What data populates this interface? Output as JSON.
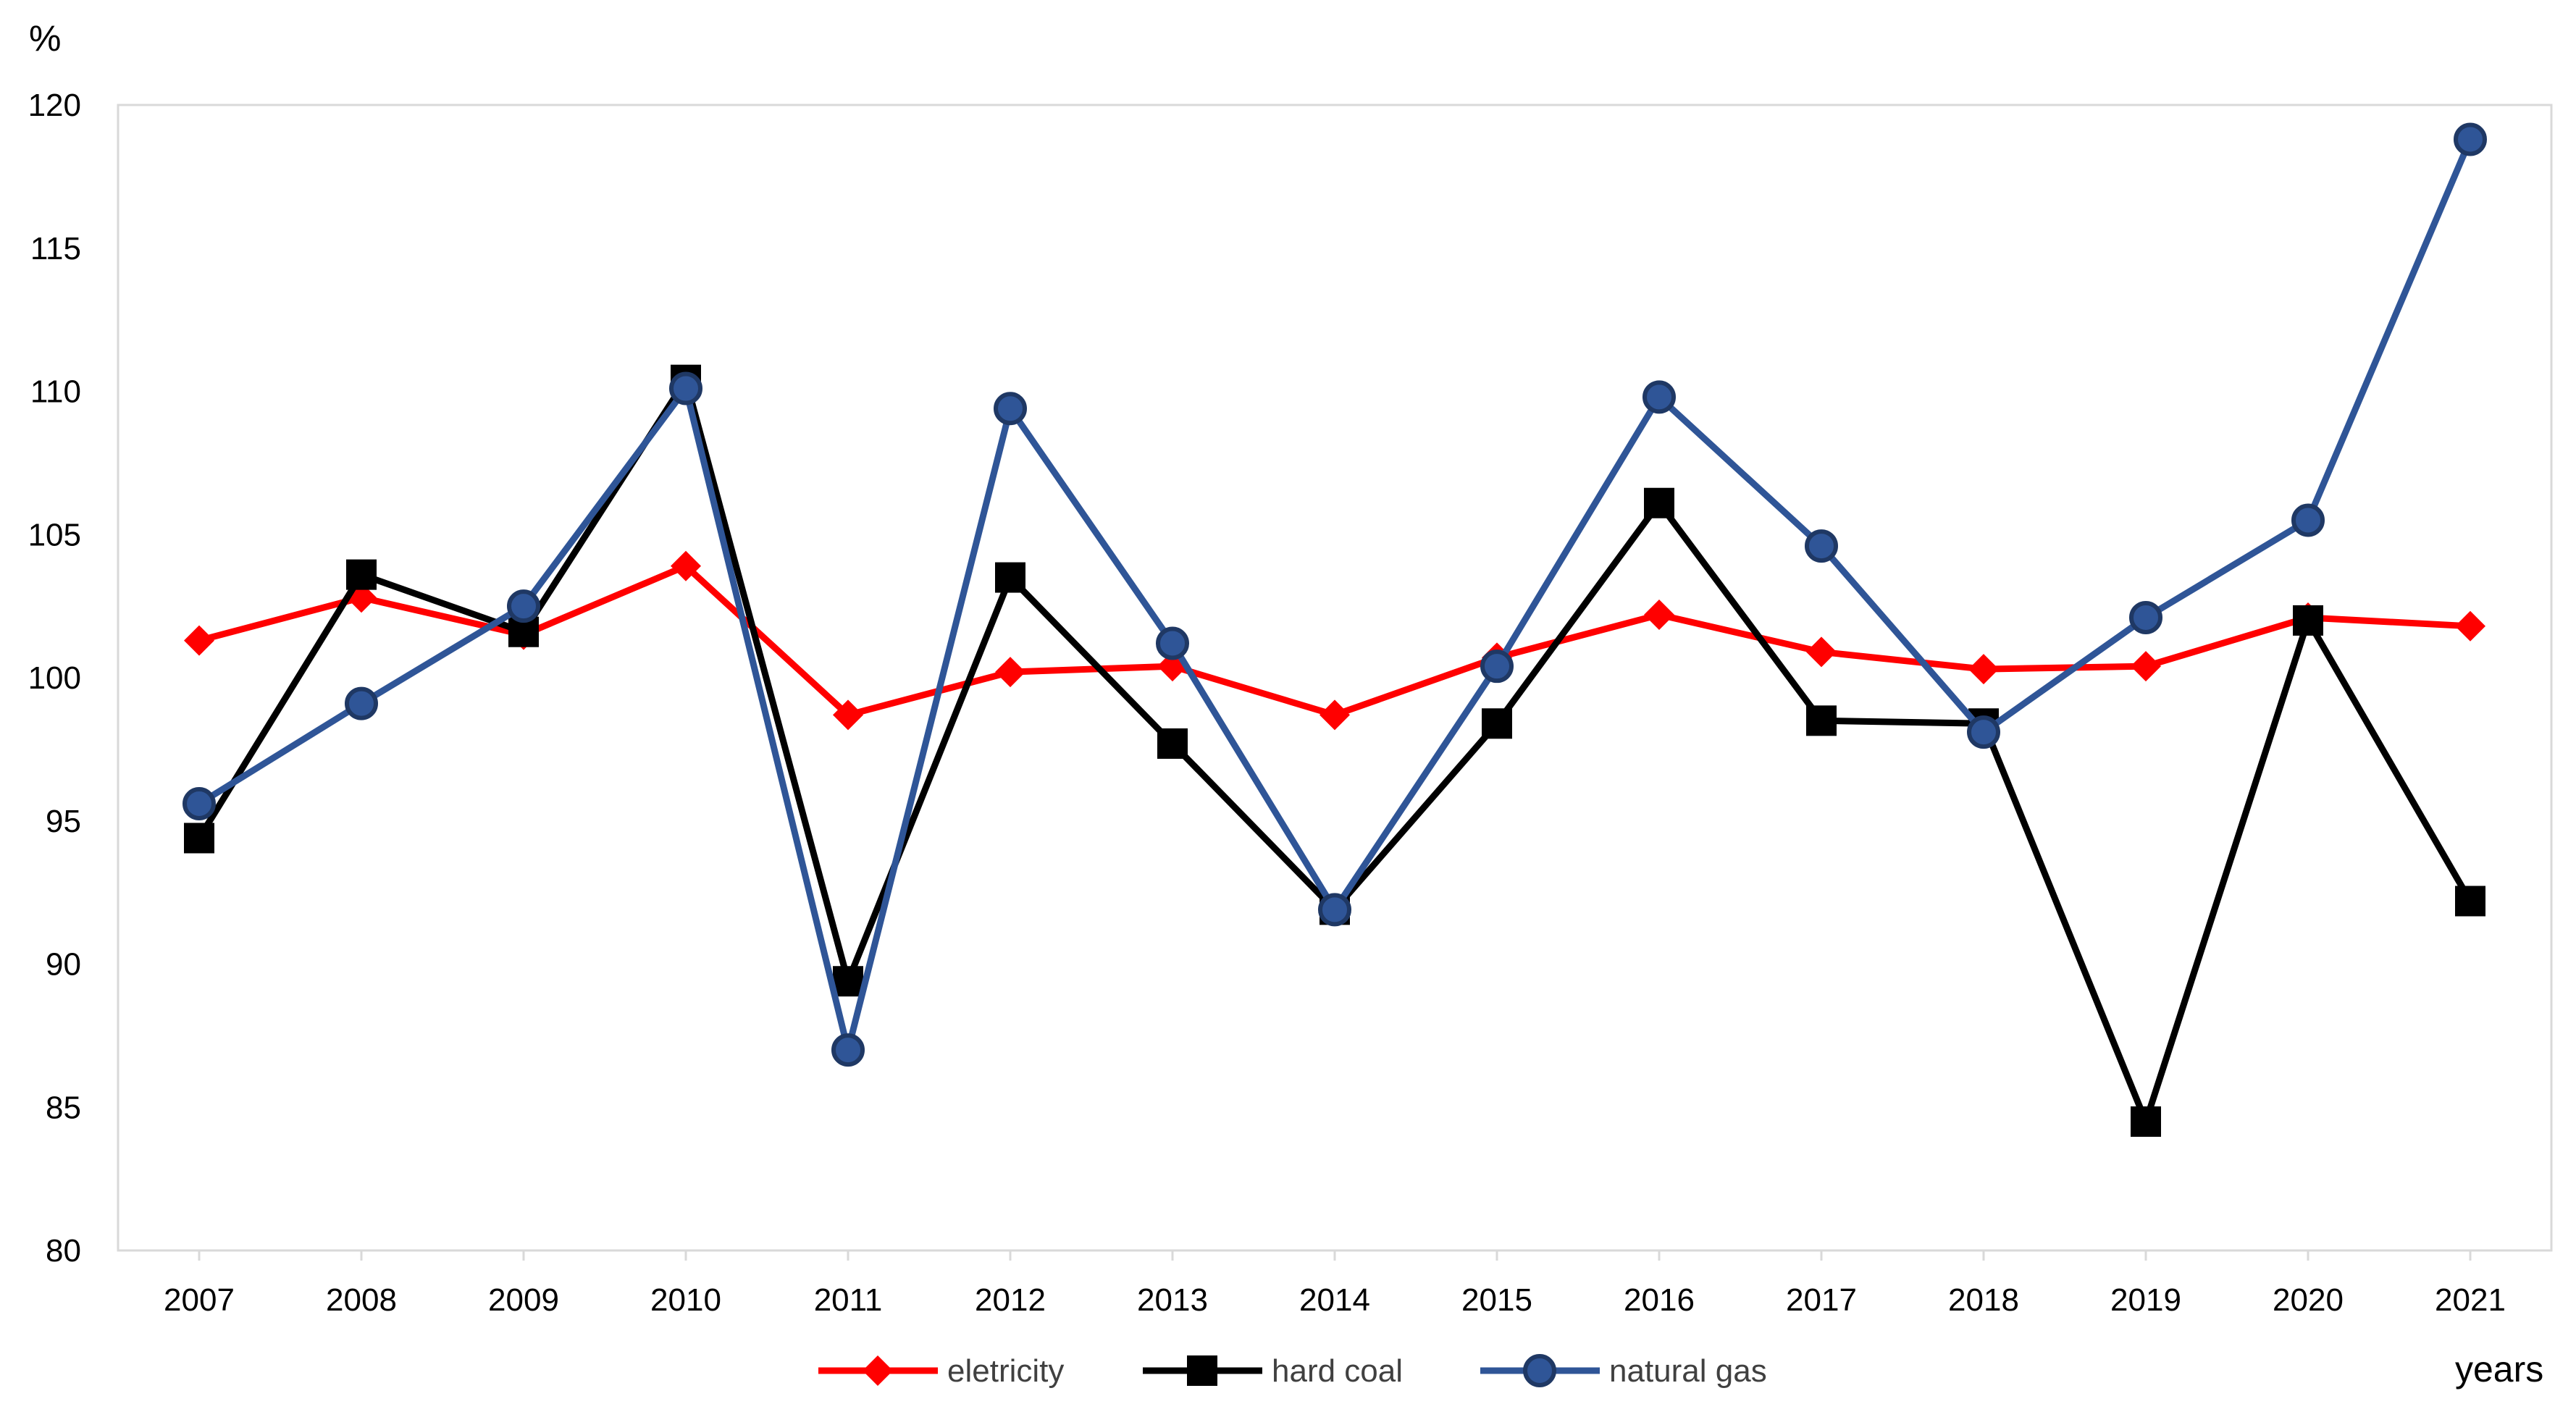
{
  "chart_data": {
    "type": "line",
    "title": "",
    "xlabel": "years",
    "ylabel": "%",
    "categories": [
      "2007",
      "2008",
      "2009",
      "2010",
      "2011",
      "2012",
      "2013",
      "2014",
      "2015",
      "2016",
      "2017",
      "2018",
      "2019",
      "2020",
      "2021"
    ],
    "ylim": [
      80,
      120
    ],
    "yticks": [
      80,
      85,
      90,
      95,
      100,
      105,
      110,
      115,
      120
    ],
    "grid": false,
    "legend_position": "bottom",
    "series": [
      {
        "name": "eletricity",
        "color": "#FF0000",
        "marker": "diamond",
        "values": [
          101.3,
          102.8,
          101.5,
          103.9,
          98.7,
          100.2,
          100.4,
          98.7,
          100.7,
          102.2,
          100.9,
          100.3,
          100.4,
          102.1,
          101.8
        ]
      },
      {
        "name": "hard coal",
        "color": "#000000",
        "marker": "square",
        "values": [
          94.4,
          103.6,
          101.6,
          110.4,
          89.4,
          103.5,
          97.7,
          91.9,
          98.4,
          106.1,
          98.5,
          98.4,
          84.5,
          102.0,
          92.2
        ]
      },
      {
        "name": "natural gas",
        "color": "#2F5597",
        "marker": "circle",
        "values": [
          95.6,
          99.1,
          102.5,
          110.1,
          87.0,
          109.4,
          101.2,
          91.9,
          100.4,
          109.8,
          104.6,
          98.1,
          102.1,
          105.5,
          118.8
        ]
      }
    ]
  }
}
